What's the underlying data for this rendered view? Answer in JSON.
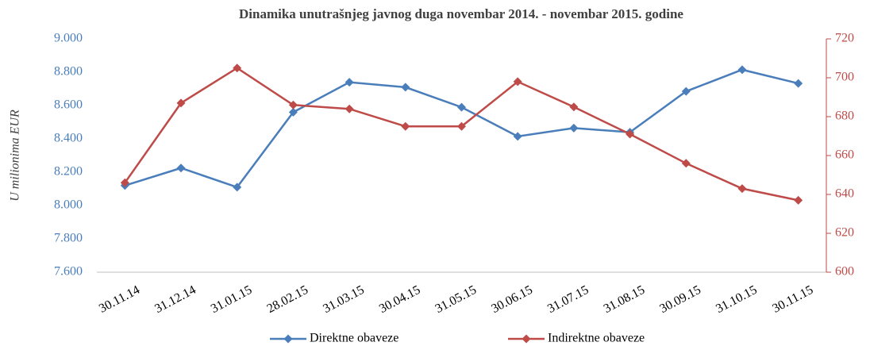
{
  "chart_data": {
    "type": "line",
    "title": "Dinamika unutrašnjeg javnog duga novembar 2014. - novembar 2015. godine",
    "y_label": "U milionima EUR",
    "categories": [
      "30.11.14",
      "31.12.14",
      "31.01.15",
      "28.02.15",
      "31.03.15",
      "30.04.15",
      "31.05.15",
      "30.06.15",
      "31.07.15",
      "31.08.15",
      "30.09.15",
      "31.10.15",
      "30.11.15"
    ],
    "series": [
      {
        "name": "Direktne obaveze",
        "color": "#4a7ebb",
        "values": [
          8120,
          8225,
          8110,
          8560,
          8740,
          8710,
          8590,
          8415,
          8465,
          8440,
          8685,
          8815,
          8733
        ]
      },
      {
        "name": "Indirektne obaveze",
        "color": "#be4b48",
        "axis": "y2",
        "values": [
          646,
          687,
          705,
          686,
          684,
          675,
          675,
          698,
          685,
          671,
          656,
          643,
          637
        ]
      }
    ],
    "ylim": [
      7600,
      9000
    ],
    "yticks": [
      {
        "value": 7600,
        "label": "7.600"
      },
      {
        "value": 7800,
        "label": "7.800"
      },
      {
        "value": 8000,
        "label": "8.000"
      },
      {
        "value": 8200,
        "label": "8.200"
      },
      {
        "value": 8400,
        "label": "8.400"
      },
      {
        "value": 8600,
        "label": "8.600"
      },
      {
        "value": 8800,
        "label": "8.800"
      },
      {
        "value": 9000,
        "label": "9.000"
      }
    ],
    "y2lim": [
      600,
      720
    ],
    "y2ticks": [
      600,
      620,
      640,
      660,
      680,
      700,
      720
    ],
    "legend": "bottom"
  }
}
